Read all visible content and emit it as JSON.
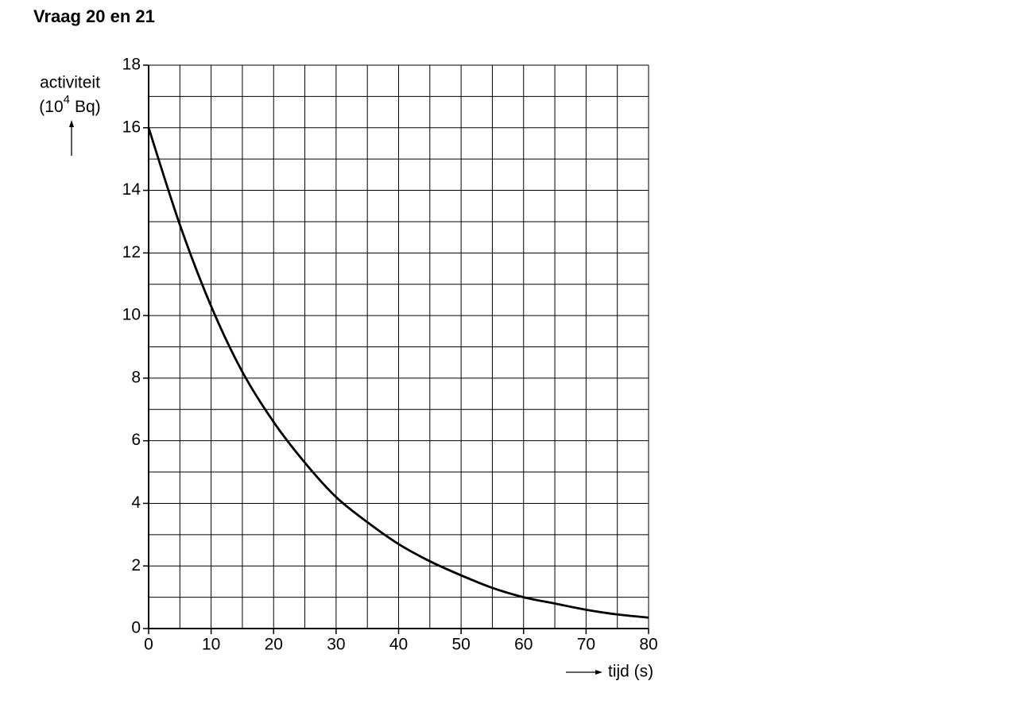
{
  "chart_data": {
    "type": "line",
    "title": "Vraag 20 en 21",
    "ylabel": {
      "line1": "activiteit",
      "unit_prefix": "(10",
      "unit_exponent": "4",
      "unit_suffix": "Bq)"
    },
    "xlabel": "tijd (s)",
    "x": [
      0,
      5,
      10,
      15,
      20,
      25,
      30,
      35,
      40,
      45,
      50,
      55,
      60,
      65,
      70,
      75,
      80
    ],
    "values": [
      16,
      12.9,
      10.3,
      8.2,
      6.6,
      5.3,
      4.2,
      3.4,
      2.7,
      2.15,
      1.7,
      1.3,
      1.0,
      0.8,
      0.6,
      0.45,
      0.35
    ],
    "color": "#000000",
    "xlim": [
      0,
      80
    ],
    "ylim": [
      0,
      18
    ],
    "xticks": [
      0,
      10,
      20,
      30,
      40,
      50,
      60,
      70,
      80
    ],
    "yticks": [
      0,
      2,
      4,
      6,
      8,
      10,
      12,
      14,
      16,
      18
    ],
    "x_minor_ticks": [
      5,
      15,
      25,
      35,
      45,
      55,
      65,
      75
    ],
    "y_minor_ticks": [
      1,
      3,
      5,
      7,
      9,
      11,
      13,
      15,
      17
    ],
    "grid": true
  }
}
